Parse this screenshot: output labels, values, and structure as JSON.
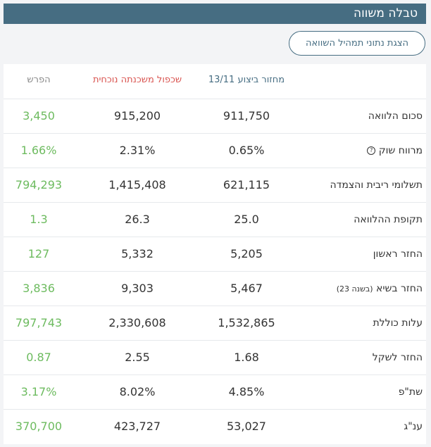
{
  "header": {
    "title": "טבלה משווה"
  },
  "compare_button": {
    "label": "הצגת נתוני תמהיל השוואה"
  },
  "columns": {
    "label": "",
    "current": "מחזור ביצוע 13/11",
    "offer": "שכפול משכנתה נוכחית",
    "diff": "הפרש"
  },
  "rows": [
    {
      "label": "סכום הלוואה",
      "current": "911,750",
      "offer": "915,200",
      "diff": "3,450"
    },
    {
      "label": "מרווח שוק",
      "current": "0.65%",
      "offer": "2.31%",
      "diff": "1.66%",
      "icon": "help-circle-icon"
    },
    {
      "label": "תשלומי ריבית והצמדה",
      "current": "621,115",
      "offer": "1,415,408",
      "diff": "794,293"
    },
    {
      "label": "תקופת ההלוואה",
      "current": "25.0",
      "offer": "26.3",
      "diff": "1.3"
    },
    {
      "label": "החזר ראשון",
      "current": "5,205",
      "offer": "5,332",
      "diff": "127"
    },
    {
      "label": "החזר בשיא",
      "label_note": "(בשנה 23)",
      "current": "5,467",
      "offer": "9,303",
      "diff": "3,836"
    },
    {
      "label": "עלות כוללת",
      "current": "1,532,865",
      "offer": "2,330,608",
      "diff": "797,743"
    },
    {
      "label": "החזר לשקל",
      "current": "1.68",
      "offer": "2.55",
      "diff": "0.87"
    },
    {
      "label": "שת\"פ",
      "current": "4.85%",
      "offer": "8.02%",
      "diff": "3.17%"
    },
    {
      "label": "ענ\"ג",
      "current": "53,027",
      "offer": "423,727",
      "diff": "370,700"
    }
  ],
  "colors": {
    "header_bg": "#466d82",
    "current_header": "#466d82",
    "offer_header": "#d9534f",
    "diff_value": "#6dbb5f"
  }
}
